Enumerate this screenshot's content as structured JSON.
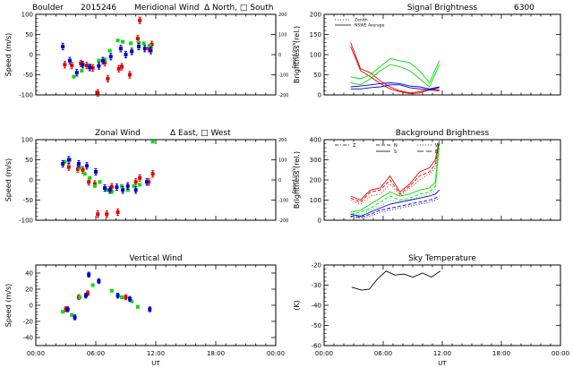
{
  "header": {
    "site": "Boulder",
    "date_code": "2015246",
    "meridional_title": "Meridional Wind",
    "meridional_legend": "Δ North, □ South"
  },
  "colors": {
    "red": "#dd0000",
    "green": "#00dd00",
    "blue": "#0000cc",
    "black": "#000000"
  },
  "chart_data": [
    {
      "id": "meridional",
      "type": "scatter",
      "title": "",
      "ylabel": "Speed (m/s)",
      "ylabel_right": "Speed (m/s)",
      "x_range_hours": [
        0,
        24
      ],
      "ylim": [
        -100,
        100
      ],
      "y_ticks": [
        "-100",
        "-50",
        "0",
        "50",
        "100"
      ],
      "y_ticks_right": [
        "-200",
        "-100",
        "0",
        "100",
        "200"
      ],
      "x_tick_labels": [
        "",
        "",
        "",
        "",
        ""
      ],
      "series": [
        {
          "color": "red",
          "points": [
            [
              2.9,
              -25
            ],
            [
              3.6,
              -27
            ],
            [
              4.5,
              -22
            ],
            [
              5.1,
              -27
            ],
            [
              5.7,
              -33
            ],
            [
              6.2,
              -95
            ],
            [
              6.9,
              -20
            ],
            [
              7.2,
              -60
            ],
            [
              8.3,
              -35
            ],
            [
              8.6,
              -30
            ],
            [
              9.4,
              -50
            ],
            [
              10.2,
              40
            ],
            [
              10.4,
              85
            ],
            [
              11.3,
              15
            ],
            [
              11.6,
              25
            ]
          ],
          "err": 8
        },
        {
          "color": "green",
          "points": [
            [
              3.8,
              -55
            ],
            [
              4.6,
              -40
            ],
            [
              5.4,
              -28
            ],
            [
              6.3,
              -15
            ],
            [
              6.9,
              -12
            ],
            [
              7.4,
              10
            ],
            [
              8.2,
              35
            ],
            [
              8.7,
              32
            ],
            [
              9.5,
              28
            ],
            [
              10.3,
              30
            ],
            [
              10.8,
              28
            ],
            [
              11.4,
              22
            ]
          ],
          "err": 0
        },
        {
          "color": "blue",
          "points": [
            [
              2.7,
              20
            ],
            [
              3.4,
              -15
            ],
            [
              4.1,
              -45
            ],
            [
              4.7,
              -25
            ],
            [
              5.4,
              -32
            ],
            [
              6.3,
              -28
            ],
            [
              6.7,
              -15
            ],
            [
              7.5,
              -5
            ],
            [
              8.5,
              15
            ],
            [
              9.0,
              0
            ],
            [
              9.6,
              8
            ],
            [
              10.3,
              20
            ],
            [
              10.9,
              15
            ],
            [
              11.5,
              10
            ]
          ],
          "err": 8
        }
      ]
    },
    {
      "id": "zonal",
      "type": "scatter",
      "title": "Zonal Wind",
      "legend_text": "Δ East, □ West",
      "ylabel": "Speed (m/s)",
      "ylabel_right": "Speed (m/s)",
      "x_range_hours": [
        0,
        24
      ],
      "ylim": [
        -100,
        100
      ],
      "y_ticks": [
        "-100",
        "-50",
        "0",
        "50",
        "100"
      ],
      "y_ticks_right": [
        "-200",
        "-100",
        "0",
        "100",
        "200"
      ],
      "x_tick_labels": [
        "",
        "",
        "",
        "",
        ""
      ],
      "series": [
        {
          "color": "red",
          "points": [
            [
              3.3,
              32
            ],
            [
              4.2,
              27
            ],
            [
              4.7,
              25
            ],
            [
              5.3,
              -5
            ],
            [
              5.9,
              -10
            ],
            [
              6.2,
              -85
            ],
            [
              7.1,
              -85
            ],
            [
              7.6,
              -17
            ],
            [
              8.2,
              -80
            ],
            [
              10.0,
              -5
            ],
            [
              10.4,
              5
            ],
            [
              11.3,
              -5
            ],
            [
              11.7,
              15
            ]
          ],
          "err": 8
        },
        {
          "color": "green",
          "points": [
            [
              2.9,
              45
            ],
            [
              3.4,
              50
            ],
            [
              4.4,
              30
            ],
            [
              4.9,
              15
            ],
            [
              5.4,
              5
            ],
            [
              5.9,
              -15
            ],
            [
              6.4,
              -5
            ],
            [
              7.1,
              -25
            ],
            [
              7.6,
              -30
            ],
            [
              8.6,
              -15
            ],
            [
              9.2,
              -25
            ],
            [
              9.8,
              -15
            ],
            [
              10.4,
              -12
            ],
            [
              11.7,
              95
            ]
          ],
          "err": 0
        },
        {
          "color": "blue",
          "points": [
            [
              2.7,
              40
            ],
            [
              3.3,
              50
            ],
            [
              4.3,
              40
            ],
            [
              5.1,
              35
            ],
            [
              6.0,
              20
            ],
            [
              6.9,
              -20
            ],
            [
              7.4,
              -25
            ],
            [
              8.1,
              -18
            ],
            [
              8.7,
              -25
            ],
            [
              9.2,
              -15
            ],
            [
              10.0,
              -25
            ],
            [
              11.1,
              -5
            ]
          ],
          "err": 8
        }
      ]
    },
    {
      "id": "vertical",
      "type": "scatter",
      "title": "Vertical Wind",
      "ylabel": "Speed (m/s)",
      "x_range_hours": [
        0,
        24
      ],
      "ylim": [
        -50,
        50
      ],
      "y_ticks": [
        "-40",
        "-20",
        "0",
        "20",
        "40"
      ],
      "x_tick_labels": [
        "00:00",
        "06:00",
        "12:00",
        "18:00",
        "00:00"
      ],
      "xlabel": "UT",
      "series": [
        {
          "color": "red",
          "points": [
            [
              3.0,
              -5
            ],
            [
              4.3,
              10
            ],
            [
              5.2,
              15
            ],
            [
              9.0,
              10
            ]
          ],
          "err": 3
        },
        {
          "color": "green",
          "points": [
            [
              2.7,
              -8
            ],
            [
              3.6,
              -12
            ],
            [
              4.4,
              10
            ],
            [
              5.7,
              25
            ],
            [
              7.6,
              18
            ],
            [
              8.6,
              10
            ],
            [
              9.6,
              5
            ],
            [
              10.2,
              -2
            ]
          ],
          "err": 0
        },
        {
          "color": "blue",
          "points": [
            [
              3.2,
              -5
            ],
            [
              3.9,
              -15
            ],
            [
              5.0,
              12
            ],
            [
              5.3,
              38
            ],
            [
              6.3,
              30
            ],
            [
              8.2,
              12
            ],
            [
              9.4,
              8
            ],
            [
              11.4,
              -5
            ]
          ],
          "err": 3
        }
      ]
    },
    {
      "id": "signal",
      "type": "line",
      "title": "Signal Brightness",
      "title_suffix": "6300",
      "ylabel": "Brightness (rel.)",
      "x_range_hours": [
        0,
        24
      ],
      "ylim": [
        0,
        200
      ],
      "y_ticks": [
        "0",
        "50",
        "100",
        "150",
        "200"
      ],
      "x_tick_labels": [
        "",
        "",
        "",
        "",
        ""
      ],
      "legend": [
        {
          "label": "Zenith",
          "style": "dotted"
        },
        {
          "label": "NSWE Average",
          "style": "solid"
        }
      ],
      "series": [
        {
          "color": "red",
          "x": [
            2.7,
            3.7,
            4.7,
            5.7,
            6.7,
            7.7,
            8.7,
            9.7,
            10.7,
            11.7
          ],
          "y": [
            130,
            65,
            55,
            35,
            20,
            10,
            5,
            8,
            15,
            12
          ]
        },
        {
          "color": "red",
          "x": [
            2.7,
            3.7,
            4.7,
            5.7,
            6.7,
            7.7,
            8.7,
            9.7,
            10.7,
            11.7
          ],
          "y": [
            120,
            60,
            45,
            28,
            15,
            8,
            3,
            5,
            12,
            10
          ]
        },
        {
          "color": "green",
          "x": [
            2.7,
            3.7,
            4.7,
            5.7,
            6.7,
            7.7,
            8.7,
            9.7,
            10.7,
            11.7
          ],
          "y": [
            45,
            40,
            50,
            70,
            90,
            85,
            80,
            60,
            30,
            85
          ]
        },
        {
          "color": "green",
          "x": [
            2.7,
            3.7,
            4.7,
            5.7,
            6.7,
            7.7,
            8.7,
            9.7,
            10.7,
            11.7
          ],
          "y": [
            30,
            25,
            40,
            60,
            75,
            70,
            60,
            40,
            20,
            75
          ]
        },
        {
          "color": "blue",
          "x": [
            2.7,
            3.7,
            4.7,
            5.7,
            6.7,
            7.7,
            8.7,
            9.7,
            10.7,
            11.7
          ],
          "y": [
            15,
            15,
            18,
            20,
            25,
            25,
            18,
            15,
            12,
            18
          ]
        },
        {
          "color": "blue",
          "x": [
            2.7,
            3.7,
            4.7,
            5.7,
            6.7,
            7.7,
            8.7,
            9.7,
            10.7,
            11.7
          ],
          "y": [
            20,
            22,
            25,
            28,
            30,
            28,
            22,
            20,
            15,
            20
          ]
        }
      ]
    },
    {
      "id": "background",
      "type": "line",
      "title": "Background Brightness",
      "ylabel": "Brightness (rel.)",
      "x_range_hours": [
        0,
        24
      ],
      "ylim": [
        0,
        400
      ],
      "y_ticks": [
        "0",
        "100",
        "200",
        "300",
        "400"
      ],
      "x_tick_labels": [
        "",
        "",
        "",
        "",
        ""
      ],
      "legend": [
        {
          "label": "Z",
          "style": "dashdot"
        },
        {
          "label": "N",
          "style": "dashed"
        },
        {
          "label": "S",
          "style": "solid"
        },
        {
          "label": "W",
          "style": "dotted"
        },
        {
          "label": "E",
          "style": "longdash"
        }
      ],
      "series": [
        {
          "color": "red",
          "x": [
            2.7,
            3.7,
            4.7,
            5.7,
            6.7,
            7.7,
            8.7,
            9.7,
            10.7,
            11.3,
            11.7
          ],
          "y": [
            120,
            100,
            150,
            160,
            220,
            140,
            180,
            240,
            260,
            300,
            400
          ]
        },
        {
          "color": "red",
          "x": [
            2.7,
            3.7,
            4.7,
            5.7,
            6.7,
            7.7,
            8.7,
            9.7,
            10.7,
            11.3,
            11.7
          ],
          "y": [
            110,
            90,
            140,
            150,
            200,
            130,
            170,
            220,
            240,
            280,
            400
          ]
        },
        {
          "color": "red",
          "x": [
            2.7,
            3.7,
            4.7,
            5.7,
            6.7,
            7.7,
            8.7,
            9.7,
            10.7,
            11.3,
            11.7
          ],
          "y": [
            100,
            80,
            120,
            130,
            180,
            120,
            160,
            200,
            230,
            260,
            380
          ]
        },
        {
          "color": "green",
          "x": [
            2.7,
            3.7,
            4.7,
            5.7,
            6.7,
            7.7,
            8.7,
            9.7,
            10.7,
            11.3,
            11.7
          ],
          "y": [
            40,
            50,
            80,
            110,
            140,
            120,
            130,
            150,
            160,
            190,
            400
          ]
        },
        {
          "color": "green",
          "x": [
            2.7,
            3.7,
            4.7,
            5.7,
            6.7,
            7.7,
            8.7,
            9.7,
            10.7,
            11.3,
            11.7
          ],
          "y": [
            30,
            40,
            60,
            90,
            120,
            100,
            110,
            130,
            140,
            170,
            380
          ]
        },
        {
          "color": "green",
          "x": [
            2.7,
            3.7,
            4.7,
            5.7,
            6.7,
            7.7,
            8.7,
            9.7,
            10.7,
            11.3,
            11.7
          ],
          "y": [
            20,
            30,
            50,
            70,
            100,
            90,
            100,
            120,
            130,
            150,
            360
          ]
        },
        {
          "color": "blue",
          "x": [
            2.7,
            3.7,
            4.7,
            5.7,
            6.7,
            7.7,
            8.7,
            9.7,
            10.7,
            11.3,
            11.7
          ],
          "y": [
            30,
            20,
            40,
            60,
            80,
            90,
            100,
            110,
            120,
            130,
            150
          ]
        },
        {
          "color": "blue",
          "x": [
            2.7,
            3.7,
            4.7,
            5.7,
            6.7,
            7.7,
            8.7,
            9.7,
            10.7,
            11.3,
            11.7
          ],
          "y": [
            20,
            15,
            30,
            50,
            60,
            70,
            80,
            90,
            100,
            110,
            120
          ]
        },
        {
          "color": "blue",
          "x": [
            2.7,
            3.7,
            4.7,
            5.7,
            6.7,
            7.7,
            8.7,
            9.7,
            10.7,
            11.3,
            11.7
          ],
          "y": [
            15,
            10,
            20,
            40,
            50,
            60,
            70,
            80,
            90,
            100,
            110
          ]
        }
      ]
    },
    {
      "id": "sky",
      "type": "line",
      "title": "Sky Temperature",
      "ylabel": "(K)",
      "x_range_hours": [
        0,
        24
      ],
      "ylim": [
        -60,
        -20
      ],
      "y_ticks": [
        "-60",
        "-50",
        "-40",
        "-30",
        "-20"
      ],
      "x_tick_labels": [
        "00:00",
        "06:00",
        "12:00",
        "18:00",
        "00:00"
      ],
      "xlabel": "UT",
      "series": [
        {
          "color": "black",
          "x": [
            2.8,
            3.8,
            4.6,
            5.4,
            6.3,
            7.2,
            8.1,
            9.0,
            10.0,
            10.9,
            11.8
          ],
          "y": [
            -31,
            -32.5,
            -32,
            -27,
            -23,
            -25,
            -24.5,
            -26,
            -24,
            -26,
            -23
          ]
        }
      ]
    }
  ]
}
